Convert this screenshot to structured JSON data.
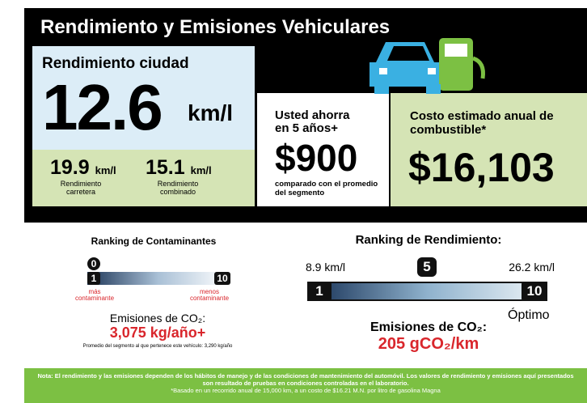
{
  "header": {
    "title": "Rendimiento y Emisiones Vehiculares"
  },
  "city": {
    "label": "Rendimiento ciudad",
    "value": "12.6",
    "unit": "km/l"
  },
  "highway": {
    "value": "19.9",
    "unit": "km/l",
    "label": "Rendimiento carretera"
  },
  "combined": {
    "value": "15.1",
    "unit": "km/l",
    "label": "Rendimiento combinado"
  },
  "savings": {
    "label": "Usted ahorra en 5 años+",
    "value": "$900",
    "note": "comparado con el promedio del segmento"
  },
  "cost": {
    "label": "Costo estimado anual de combustible*",
    "value": "$16,103"
  },
  "pollutants": {
    "title": "Ranking de Contaminantes",
    "marker": "0",
    "low": "1",
    "high": "10",
    "low_label": "más contaminante",
    "high_label": "menos contaminante",
    "co2_label": "Emisiones de CO₂:",
    "co2_value": "3,075 kg/año+",
    "note": "Promedio del segmento al que pertenece este vehículo: 3,290 kg/año"
  },
  "efficiency": {
    "title": "Ranking de Rendimiento:",
    "min": "8.9 km/l",
    "max": "26.2 km/l",
    "marker": "5",
    "low": "1",
    "high": "10",
    "best": "Óptimo",
    "co2_label": "Emisiones de CO₂:",
    "co2_value": "205 gCO₂/km"
  },
  "footer": {
    "note": "Nota: El rendimiento y las emisiones dependen de los hábitos de manejo y de las condiciones de mantenimiento del automóvil. Los valores de rendimiento y emisiones aquí presentados son resultado de pruebas en condiciones controladas en el laboratorio.",
    "basis": "*Basado en un recorrido anual de 15,000 km, a un costo de $16.21 M.N. por litro de gasolina Magna"
  }
}
